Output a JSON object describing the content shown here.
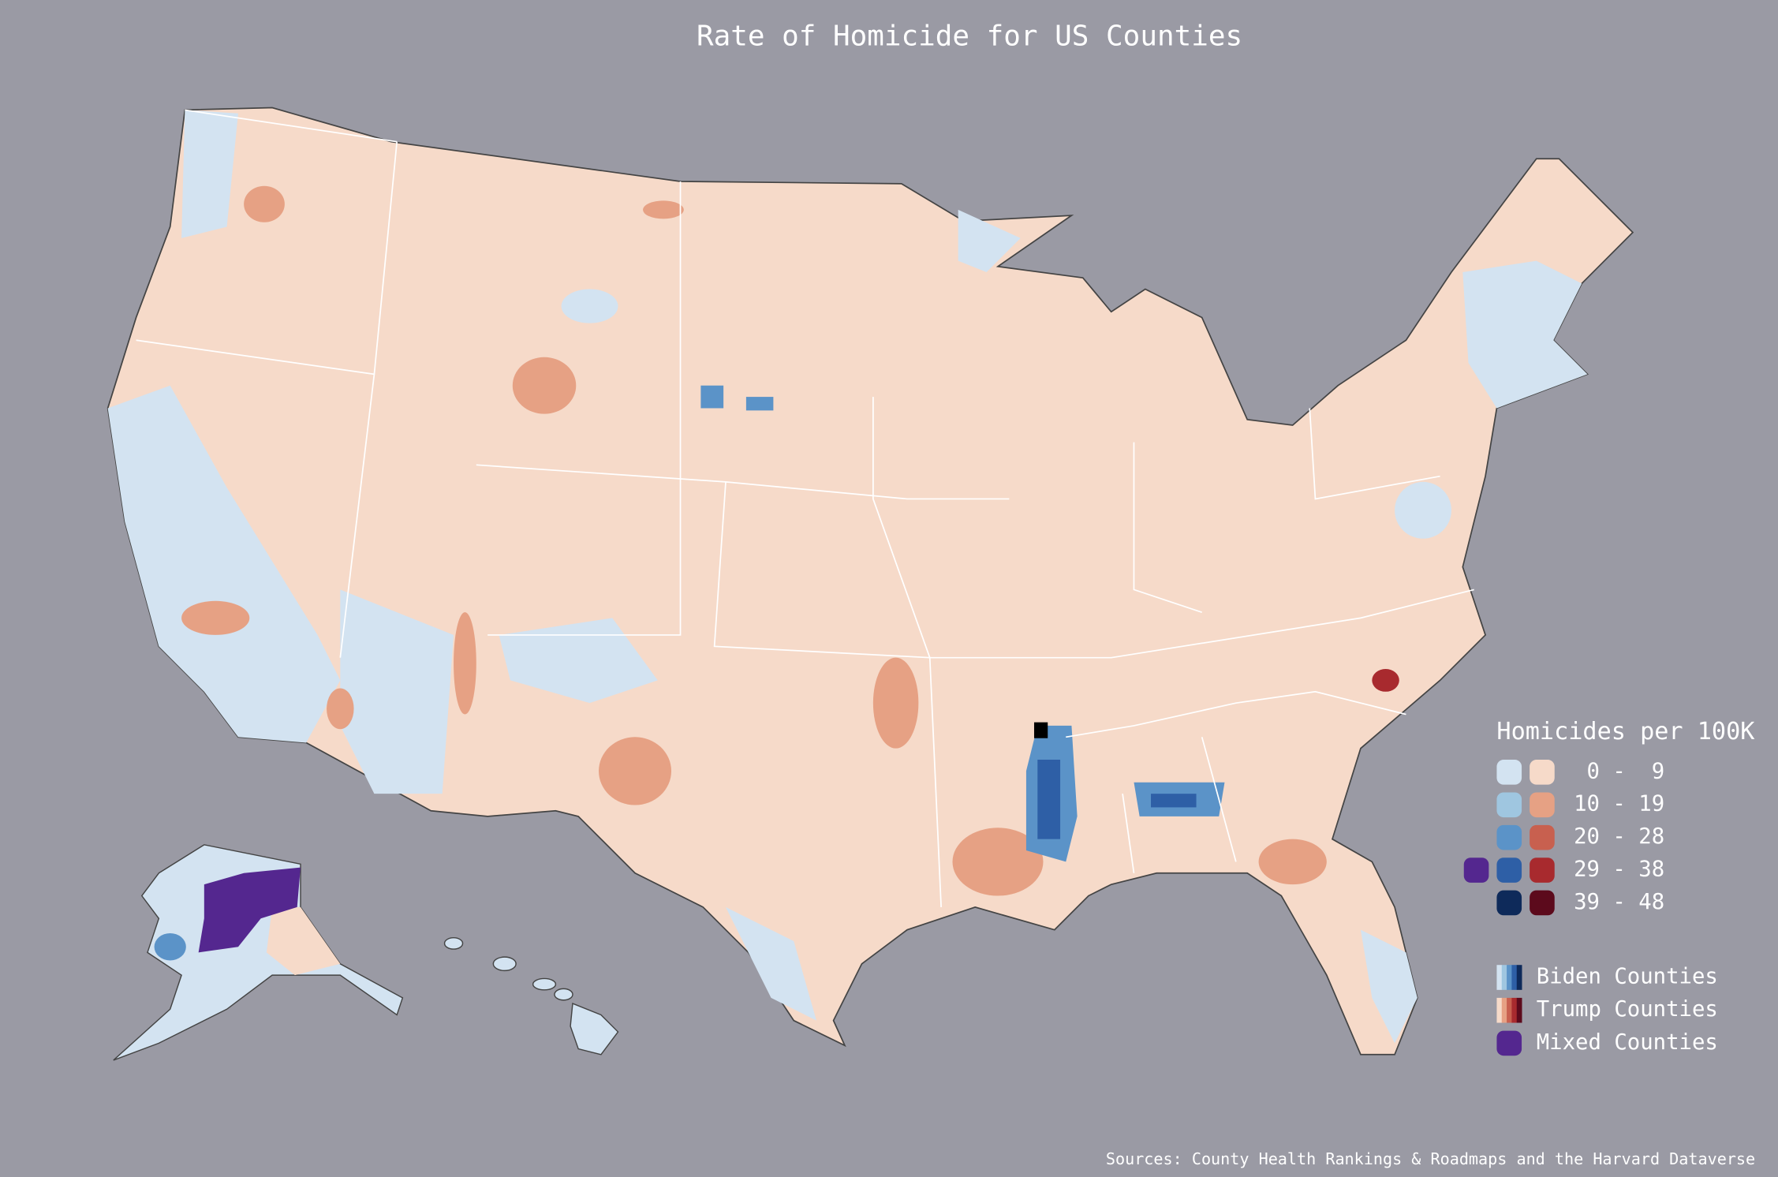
{
  "title": "Rate of Homicide for US Counties",
  "legend": {
    "title": "Homicides per 100K",
    "rows": [
      {
        "label": "0 -  9",
        "biden": "#d3e3f1",
        "trump": "#f6dac9"
      },
      {
        "label": "10 - 19",
        "biden": "#9fc6e0",
        "trump": "#e6a184"
      },
      {
        "label": "20 - 28",
        "biden": "#5b93c8",
        "trump": "#c8604f"
      },
      {
        "label": "29 - 38",
        "biden": "#2e5fa6",
        "trump": "#a82a2e",
        "mixed": "#54278f"
      },
      {
        "label": "39 - 48",
        "biden": "#0e2a5a",
        "trump": "#5c0a1c"
      }
    ]
  },
  "groups": [
    {
      "label": "Biden Counties"
    },
    {
      "label": "Trump Counties"
    },
    {
      "label": "Mixed Counties",
      "color": "#54278f"
    }
  ],
  "source": "Sources: County Health Rankings & Roadmaps and the Harvard Dataverse"
}
